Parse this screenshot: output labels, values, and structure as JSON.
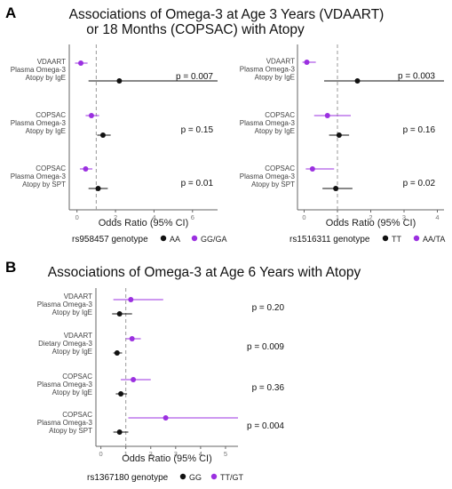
{
  "colors": {
    "black": "#111111",
    "purple": "#9b30e0",
    "ref_line": "#999999",
    "axis": "#666666"
  },
  "panel_a": {
    "letter": "A",
    "title_line1": "Associations of Omega-3 at Age 3 Years (VDAART)",
    "title_line2": "or 18 Months (COPSAC) with Atopy"
  },
  "panel_b": {
    "letter": "B",
    "title": "Associations of Omega-3 at Age 6 Years with Atopy"
  },
  "chart_data": [
    {
      "id": "a-left",
      "type": "forest",
      "xlabel": "Odds Ratio (95% CI)",
      "xlim": [
        -0.4,
        7.3
      ],
      "ticks": [
        0,
        2,
        4,
        6
      ],
      "ref_line": 1,
      "legend": {
        "title": "rs958457 genotype",
        "entries": [
          {
            "label": "AA",
            "color": "#111111"
          },
          {
            "label": "GG/GA",
            "color": "#9b30e0"
          }
        ]
      },
      "rows": [
        {
          "label": [
            "VDAART",
            "Plasma Omega-3",
            "Atopy by IgE"
          ],
          "p": "p = 0.007",
          "series": [
            {
              "name": "GG/GA",
              "or": 0.2,
              "lo": -0.1,
              "hi": 0.55
            },
            {
              "name": "AA",
              "or": 2.2,
              "lo": 0.6,
              "hi": 7.3
            }
          ]
        },
        {
          "label": [
            "COPSAC",
            "Plasma Omega-3",
            "Atopy by IgE"
          ],
          "p": "p = 0.15",
          "series": [
            {
              "name": "GG/GA",
              "or": 0.75,
              "lo": 0.45,
              "hi": 1.15
            },
            {
              "name": "AA",
              "or": 1.35,
              "lo": 1.05,
              "hi": 1.75
            }
          ]
        },
        {
          "label": [
            "COPSAC",
            "Plasma Omega-3",
            "Atopy by SPT"
          ],
          "p": "p = 0.01",
          "series": [
            {
              "name": "GG/GA",
              "or": 0.45,
              "lo": 0.15,
              "hi": 0.8
            },
            {
              "name": "AA",
              "or": 1.1,
              "lo": 0.6,
              "hi": 1.6
            }
          ]
        }
      ]
    },
    {
      "id": "a-right",
      "type": "forest",
      "xlabel": "Odds Ratio (95% CI)",
      "xlim": [
        -0.2,
        4.2
      ],
      "ticks": [
        0,
        1,
        2,
        3,
        4
      ],
      "ref_line": 1,
      "legend": {
        "title": "rs1516311 genotype",
        "entries": [
          {
            "label": "TT",
            "color": "#111111"
          },
          {
            "label": "AA/TA",
            "color": "#9b30e0"
          }
        ]
      },
      "rows": [
        {
          "label": [
            "VDAART",
            "Plasma Omega-3",
            "Atopy by IgE"
          ],
          "p": "p = 0.003",
          "series": [
            {
              "name": "AA/TA",
              "or": 0.08,
              "lo": -0.05,
              "hi": 0.35
            },
            {
              "name": "TT",
              "or": 1.6,
              "lo": 0.6,
              "hi": 4.2
            }
          ]
        },
        {
          "label": [
            "COPSAC",
            "Plasma Omega-3",
            "Atopy by IgE"
          ],
          "p": "p = 0.16",
          "series": [
            {
              "name": "AA/TA",
              "or": 0.7,
              "lo": 0.3,
              "hi": 1.4
            },
            {
              "name": "TT",
              "or": 1.05,
              "lo": 0.75,
              "hi": 1.35
            }
          ]
        },
        {
          "label": [
            "COPSAC",
            "Plasma Omega-3",
            "Atopy by SPT"
          ],
          "p": "p = 0.02",
          "series": [
            {
              "name": "AA/TA",
              "or": 0.25,
              "lo": 0.05,
              "hi": 0.9
            },
            {
              "name": "TT",
              "or": 0.95,
              "lo": 0.55,
              "hi": 1.45
            }
          ]
        }
      ]
    },
    {
      "id": "b",
      "type": "forest",
      "xlabel": "Odds Ratio (95% CI)",
      "xlim": [
        -0.2,
        5.5
      ],
      "ticks": [
        0,
        1,
        2,
        3,
        4,
        5
      ],
      "ref_line": 1,
      "legend": {
        "title": "rs1367180 genotype",
        "entries": [
          {
            "label": "GG",
            "color": "#111111"
          },
          {
            "label": "TT/GT",
            "color": "#9b30e0"
          }
        ]
      },
      "rows": [
        {
          "label": [
            "VDAART",
            "Plasma Omega-3",
            "Atopy by IgE"
          ],
          "p": "p = 0.20",
          "series": [
            {
              "name": "TT/GT",
              "or": 1.2,
              "lo": 0.5,
              "hi": 2.5
            },
            {
              "name": "GG",
              "or": 0.75,
              "lo": 0.45,
              "hi": 1.25
            }
          ]
        },
        {
          "label": [
            "VDAART",
            "Dietary Omega-3",
            "Atopy by IgE"
          ],
          "p": "p = 0.009",
          "series": [
            {
              "name": "TT/GT",
              "or": 1.25,
              "lo": 1.0,
              "hi": 1.6
            },
            {
              "name": "GG",
              "or": 0.65,
              "lo": 0.5,
              "hi": 0.85
            }
          ]
        },
        {
          "label": [
            "COPSAC",
            "Plasma Omega-3",
            "Atopy by IgE"
          ],
          "p": "p = 0.36",
          "series": [
            {
              "name": "TT/GT",
              "or": 1.3,
              "lo": 0.8,
              "hi": 2.0
            },
            {
              "name": "GG",
              "or": 0.8,
              "lo": 0.6,
              "hi": 1.05
            }
          ]
        },
        {
          "label": [
            "COPSAC",
            "Plasma Omega-3",
            "Atopy by SPT"
          ],
          "p": "p = 0.004",
          "series": [
            {
              "name": "TT/GT",
              "or": 2.6,
              "lo": 1.1,
              "hi": 5.5
            },
            {
              "name": "GG",
              "or": 0.75,
              "lo": 0.5,
              "hi": 1.1
            }
          ]
        }
      ]
    }
  ]
}
